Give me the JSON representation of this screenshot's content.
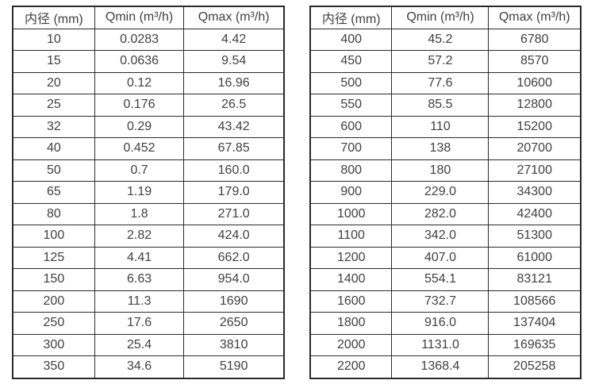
{
  "page": {
    "background_color": "#ffffff",
    "text_color": "#404040",
    "border_color": "#2a2a2a"
  },
  "chart_data": [
    {
      "type": "table",
      "title": "",
      "columns": [
        "内径 (mm)",
        "Qmin (m³/h)",
        "Qmax (m³/h)"
      ],
      "rows": [
        [
          "10",
          "0.0283",
          "4.42"
        ],
        [
          "15",
          "0.0636",
          "9.54"
        ],
        [
          "20",
          "0.12",
          "16.96"
        ],
        [
          "25",
          "0.176",
          "26.5"
        ],
        [
          "32",
          "0.29",
          "43.42"
        ],
        [
          "40",
          "0.452",
          "67.85"
        ],
        [
          "50",
          "0.7",
          "160.0"
        ],
        [
          "65",
          "1.19",
          "179.0"
        ],
        [
          "80",
          "1.8",
          "271.0"
        ],
        [
          "100",
          "2.82",
          "424.0"
        ],
        [
          "125",
          "4.41",
          "662.0"
        ],
        [
          "150",
          "6.63",
          "954.0"
        ],
        [
          "200",
          "11.3",
          "1690"
        ],
        [
          "250",
          "17.6",
          "2650"
        ],
        [
          "300",
          "25.4",
          "3810"
        ],
        [
          "350",
          "34.6",
          "5190"
        ]
      ]
    },
    {
      "type": "table",
      "title": "",
      "columns": [
        "内径 (mm)",
        "Qmin (m³/h)",
        "Qmax (m³/h)"
      ],
      "rows": [
        [
          "400",
          "45.2",
          "6780"
        ],
        [
          "450",
          "57.2",
          "8570"
        ],
        [
          "500",
          "77.6",
          "10600"
        ],
        [
          "550",
          "85.5",
          "12800"
        ],
        [
          "600",
          "110",
          "15200"
        ],
        [
          "700",
          "138",
          "20700"
        ],
        [
          "800",
          "180",
          "27100"
        ],
        [
          "900",
          "229.0",
          "34300"
        ],
        [
          "1000",
          "282.0",
          "42400"
        ],
        [
          "1100",
          "342.0",
          "51300"
        ],
        [
          "1200",
          "407.0",
          "61000"
        ],
        [
          "1400",
          "554.1",
          "83121"
        ],
        [
          "1600",
          "732.7",
          "108566"
        ],
        [
          "1800",
          "916.0",
          "137404"
        ],
        [
          "2000",
          "1131.0",
          "169635"
        ],
        [
          "2200",
          "1368.4",
          "205258"
        ]
      ]
    }
  ]
}
